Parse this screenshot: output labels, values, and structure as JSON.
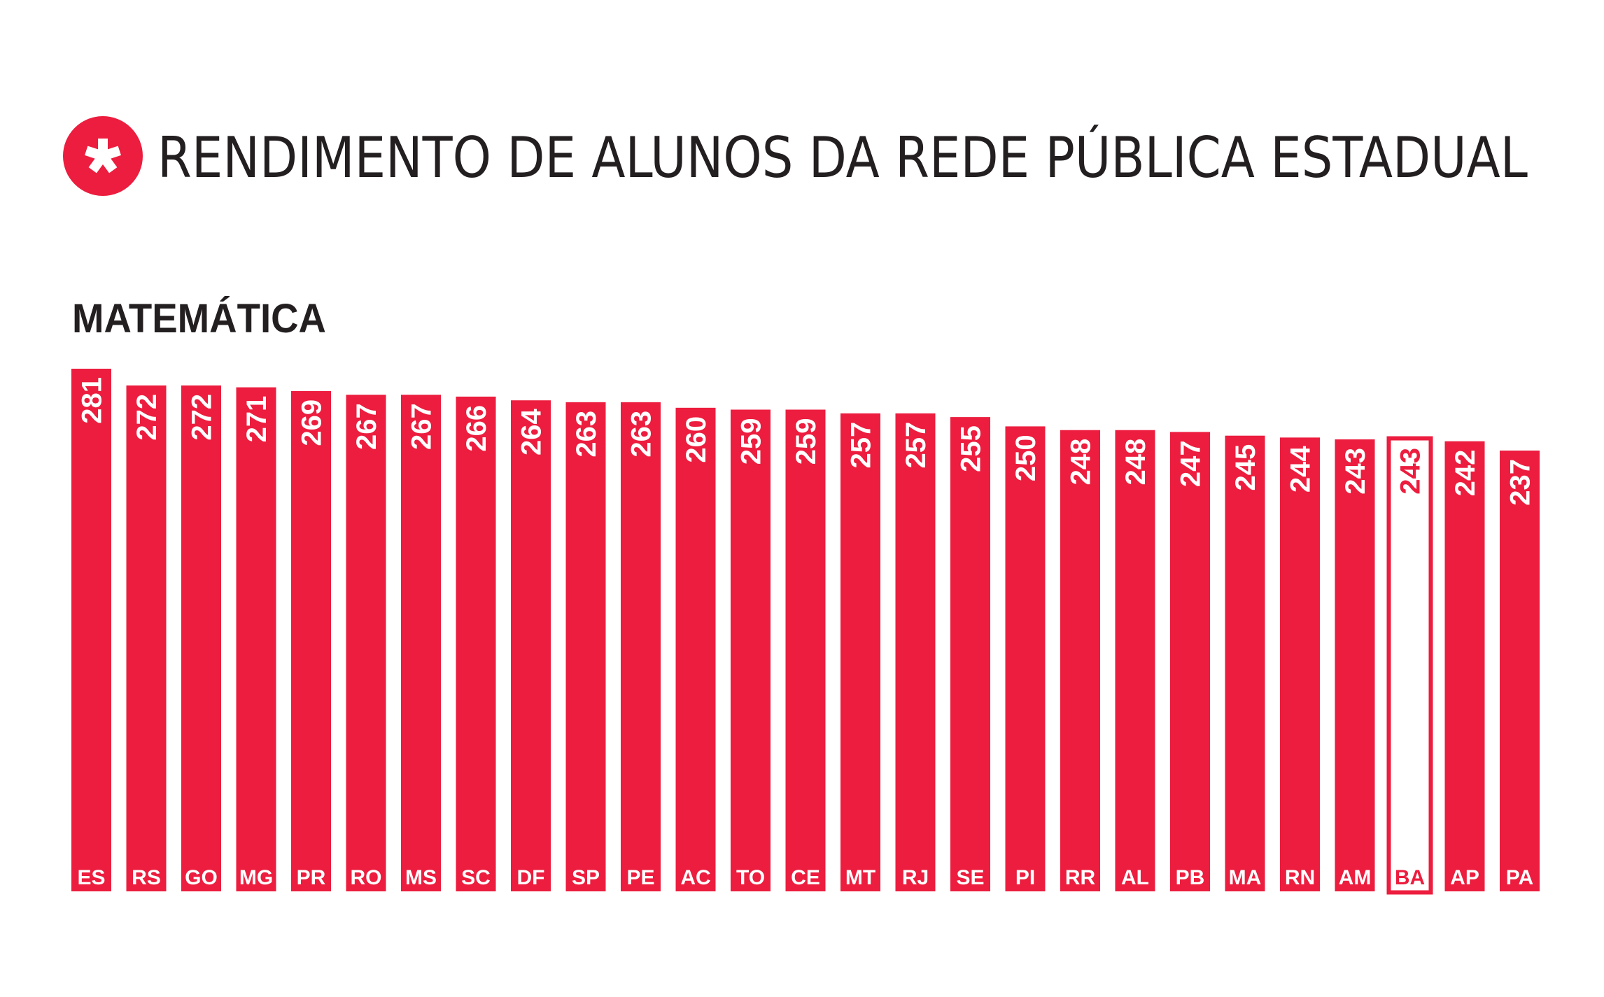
{
  "header": {
    "icon": "asterisk-icon",
    "title": "RENDIMENTO DE ALUNOS DA REDE PÚBLICA ESTADUAL"
  },
  "colors": {
    "accent": "#EC1D3E",
    "text": "#231F20",
    "highlight_fill": "#FFFFFF"
  },
  "chart_data": {
    "type": "bar",
    "title": "MATEMÁTICA",
    "xlabel": "",
    "ylabel": "",
    "ylim": [
      0,
      281
    ],
    "grid": false,
    "highlight": "BA",
    "categories": [
      "ES",
      "RS",
      "GO",
      "MG",
      "PR",
      "RO",
      "MS",
      "SC",
      "DF",
      "SP",
      "PE",
      "AC",
      "TO",
      "CE",
      "MT",
      "RJ",
      "SE",
      "PI",
      "RR",
      "AL",
      "PB",
      "MA",
      "RN",
      "AM",
      "BA",
      "AP",
      "PA"
    ],
    "values": [
      281,
      272,
      272,
      271,
      269,
      267,
      267,
      266,
      264,
      263,
      263,
      260,
      259,
      259,
      257,
      257,
      255,
      250,
      248,
      248,
      247,
      245,
      244,
      243,
      243,
      242,
      237
    ]
  }
}
